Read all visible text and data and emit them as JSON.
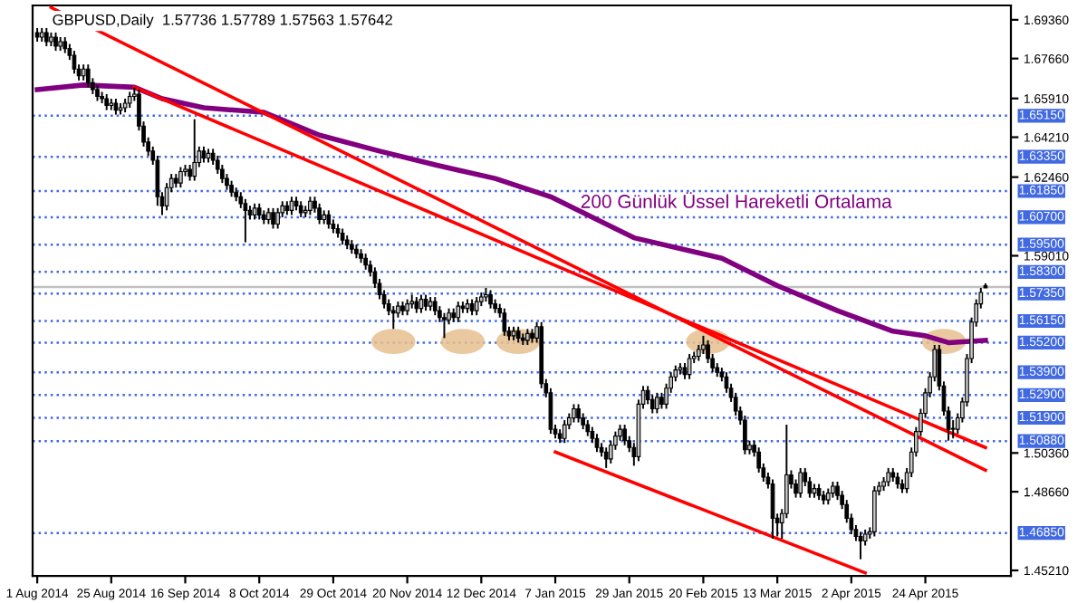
{
  "chart_data": {
    "type": "candlestick",
    "title": "GBPUSD,Daily  1.57736 1.57789 1.57563 1.57642",
    "categories": [
      "1 Aug 2014",
      null,
      null,
      null,
      null,
      null,
      null,
      null,
      null,
      null,
      null,
      null,
      null,
      null,
      null,
      null,
      "25 Aug 2014",
      null,
      null,
      null,
      null,
      null,
      null,
      null,
      null,
      null,
      null,
      null,
      null,
      null,
      null,
      null,
      "16 Sep 2014",
      null,
      null,
      null,
      null,
      null,
      null,
      null,
      null,
      null,
      null,
      null,
      null,
      null,
      null,
      null,
      "8 Oct 2014",
      null,
      null,
      null,
      null,
      null,
      null,
      null,
      null,
      null,
      null,
      null,
      null,
      null,
      null,
      null,
      "29 Oct 2014",
      null,
      null,
      null,
      null,
      null,
      null,
      null,
      null,
      null,
      null,
      null,
      null,
      null,
      null,
      null,
      "20 Nov 2014",
      null,
      null,
      null,
      null,
      null,
      null,
      null,
      null,
      null,
      null,
      null,
      null,
      null,
      null,
      null,
      "12 Dec 2014",
      null,
      null,
      null,
      null,
      null,
      null,
      null,
      null,
      null,
      null,
      null,
      null,
      null,
      null,
      null,
      "7 Jan 2015",
      null,
      null,
      null,
      null,
      null,
      null,
      null,
      null,
      null,
      null,
      null,
      null,
      null,
      null,
      null,
      "29 Jan 2015",
      null,
      null,
      null,
      null,
      null,
      null,
      null,
      null,
      null,
      null,
      null,
      null,
      null,
      null,
      null,
      "20 Feb 2015",
      null,
      null,
      null,
      null,
      null,
      null,
      null,
      null,
      null,
      null,
      null,
      null,
      null,
      null,
      null,
      "13 Mar 2015",
      null,
      null,
      null,
      null,
      null,
      null,
      null,
      null,
      null,
      null,
      null,
      null,
      null,
      null,
      null,
      "2 Apr 2015",
      null,
      null,
      null,
      null,
      null,
      null,
      null,
      null,
      null,
      null,
      null,
      null,
      null,
      null,
      null,
      "24 Apr 2015",
      null,
      null,
      null,
      null,
      null,
      null,
      null,
      null,
      null,
      null,
      null,
      null,
      null
    ],
    "ohlc": [
      [
        1.688,
        1.69,
        1.684,
        1.686
      ],
      [
        1.686,
        1.69,
        1.684,
        1.688
      ],
      [
        1.688,
        1.69,
        1.682,
        1.684
      ],
      [
        1.684,
        1.688,
        1.682,
        1.686
      ],
      [
        1.686,
        1.688,
        1.68,
        1.682
      ],
      [
        1.682,
        1.686,
        1.68,
        1.684
      ],
      [
        1.684,
        1.686,
        1.679,
        1.681
      ],
      [
        1.681,
        1.683,
        1.676,
        1.678
      ],
      [
        1.678,
        1.68,
        1.67,
        1.672
      ],
      [
        1.672,
        1.674,
        1.667,
        1.669
      ],
      [
        1.669,
        1.674,
        1.667,
        1.672
      ],
      [
        1.672,
        1.674,
        1.664,
        1.666
      ],
      [
        1.666,
        1.668,
        1.661,
        1.663
      ],
      [
        1.663,
        1.665,
        1.658,
        1.66
      ],
      [
        1.66,
        1.662,
        1.657,
        1.659
      ],
      [
        1.659,
        1.661,
        1.654,
        1.656
      ],
      [
        1.656,
        1.659,
        1.654,
        1.657
      ],
      [
        1.657,
        1.659,
        1.652,
        1.654
      ],
      [
        1.654,
        1.657,
        1.652,
        1.655
      ],
      [
        1.655,
        1.659,
        1.653,
        1.657
      ],
      [
        1.657,
        1.662,
        1.655,
        1.66
      ],
      [
        1.66,
        1.664,
        1.658,
        1.661
      ],
      [
        1.661,
        1.663,
        1.645,
        1.647
      ],
      [
        1.647,
        1.649,
        1.638,
        1.64
      ],
      [
        1.64,
        1.642,
        1.634,
        1.636
      ],
      [
        1.636,
        1.638,
        1.63,
        1.632
      ],
      [
        1.632,
        1.634,
        1.612,
        1.616
      ],
      [
        1.616,
        1.618,
        1.608,
        1.612
      ],
      [
        1.612,
        1.622,
        1.61,
        1.62
      ],
      [
        1.62,
        1.626,
        1.618,
        1.624
      ],
      [
        1.624,
        1.626,
        1.62,
        1.622
      ],
      [
        1.622,
        1.629,
        1.62,
        1.627
      ],
      [
        1.627,
        1.63,
        1.625,
        1.628
      ],
      [
        1.628,
        1.63,
        1.623,
        1.625
      ],
      [
        1.625,
        1.65,
        1.623,
        1.631
      ],
      [
        1.631,
        1.638,
        1.629,
        1.636
      ],
      [
        1.636,
        1.638,
        1.631,
        1.633
      ],
      [
        1.633,
        1.637,
        1.631,
        1.635
      ],
      [
        1.635,
        1.637,
        1.63,
        1.632
      ],
      [
        1.632,
        1.634,
        1.626,
        1.628
      ],
      [
        1.628,
        1.63,
        1.622,
        1.624
      ],
      [
        1.624,
        1.626,
        1.619,
        1.621
      ],
      [
        1.621,
        1.623,
        1.616,
        1.618
      ],
      [
        1.618,
        1.62,
        1.614,
        1.616
      ],
      [
        1.616,
        1.618,
        1.611,
        1.613
      ],
      [
        1.613,
        1.615,
        1.596,
        1.61
      ],
      [
        1.61,
        1.612,
        1.606,
        1.608
      ],
      [
        1.608,
        1.613,
        1.606,
        1.611
      ],
      [
        1.611,
        1.613,
        1.606,
        1.608
      ],
      [
        1.608,
        1.61,
        1.604,
        1.606
      ],
      [
        1.606,
        1.611,
        1.604,
        1.609
      ],
      [
        1.609,
        1.611,
        1.602,
        1.604
      ],
      [
        1.604,
        1.611,
        1.602,
        1.609
      ],
      [
        1.609,
        1.614,
        1.607,
        1.612
      ],
      [
        1.612,
        1.614,
        1.608,
        1.61
      ],
      [
        1.61,
        1.616,
        1.608,
        1.614
      ],
      [
        1.614,
        1.616,
        1.61,
        1.612
      ],
      [
        1.612,
        1.614,
        1.607,
        1.609
      ],
      [
        1.609,
        1.612,
        1.607,
        1.61
      ],
      [
        1.61,
        1.616,
        1.608,
        1.614
      ],
      [
        1.614,
        1.616,
        1.609,
        1.611
      ],
      [
        1.611,
        1.613,
        1.604,
        1.606
      ],
      [
        1.606,
        1.61,
        1.604,
        1.608
      ],
      [
        1.608,
        1.61,
        1.602,
        1.604
      ],
      [
        1.604,
        1.606,
        1.6,
        1.602
      ],
      [
        1.602,
        1.604,
        1.598,
        1.6
      ],
      [
        1.6,
        1.602,
        1.595,
        1.597
      ],
      [
        1.597,
        1.599,
        1.593,
        1.595
      ],
      [
        1.595,
        1.597,
        1.591,
        1.593
      ],
      [
        1.593,
        1.595,
        1.589,
        1.591
      ],
      [
        1.591,
        1.593,
        1.587,
        1.589
      ],
      [
        1.589,
        1.591,
        1.584,
        1.586
      ],
      [
        1.586,
        1.588,
        1.581,
        1.583
      ],
      [
        1.583,
        1.585,
        1.576,
        1.578
      ],
      [
        1.578,
        1.58,
        1.571,
        1.573
      ],
      [
        1.573,
        1.575,
        1.567,
        1.569
      ],
      [
        1.569,
        1.571,
        1.564,
        1.566
      ],
      [
        1.566,
        1.568,
        1.558,
        1.565
      ],
      [
        1.565,
        1.57,
        1.563,
        1.568
      ],
      [
        1.568,
        1.57,
        1.564,
        1.566
      ],
      [
        1.566,
        1.571,
        1.564,
        1.569
      ],
      [
        1.569,
        1.573,
        1.567,
        1.57
      ],
      [
        1.57,
        1.572,
        1.565,
        1.567
      ],
      [
        1.567,
        1.573,
        1.565,
        1.571
      ],
      [
        1.571,
        1.573,
        1.566,
        1.568
      ],
      [
        1.568,
        1.572,
        1.566,
        1.57
      ],
      [
        1.57,
        1.572,
        1.564,
        1.566
      ],
      [
        1.566,
        1.568,
        1.561,
        1.563
      ],
      [
        1.563,
        1.565,
        1.554,
        1.562
      ],
      [
        1.562,
        1.567,
        1.56,
        1.565
      ],
      [
        1.565,
        1.567,
        1.561,
        1.563
      ],
      [
        1.563,
        1.57,
        1.561,
        1.568
      ],
      [
        1.568,
        1.57,
        1.565,
        1.567
      ],
      [
        1.567,
        1.571,
        1.565,
        1.569
      ],
      [
        1.569,
        1.571,
        1.564,
        1.566
      ],
      [
        1.566,
        1.572,
        1.564,
        1.57
      ],
      [
        1.57,
        1.574,
        1.568,
        1.572
      ],
      [
        1.572,
        1.576,
        1.57,
        1.573
      ],
      [
        1.573,
        1.575,
        1.567,
        1.569
      ],
      [
        1.569,
        1.571,
        1.565,
        1.567
      ],
      [
        1.567,
        1.569,
        1.563,
        1.565
      ],
      [
        1.565,
        1.567,
        1.555,
        1.557
      ],
      [
        1.557,
        1.559,
        1.553,
        1.555
      ],
      [
        1.555,
        1.559,
        1.553,
        1.557
      ],
      [
        1.557,
        1.559,
        1.552,
        1.554
      ],
      [
        1.554,
        1.556,
        1.551,
        1.553
      ],
      [
        1.553,
        1.558,
        1.551,
        1.556
      ],
      [
        1.556,
        1.558,
        1.552,
        1.554
      ],
      [
        1.554,
        1.561,
        1.552,
        1.559
      ],
      [
        1.559,
        1.561,
        1.532,
        1.534
      ],
      [
        1.534,
        1.536,
        1.528,
        1.53
      ],
      [
        1.53,
        1.532,
        1.512,
        1.514
      ],
      [
        1.514,
        1.516,
        1.51,
        1.512
      ],
      [
        1.512,
        1.514,
        1.508,
        1.51
      ],
      [
        1.51,
        1.518,
        1.508,
        1.516
      ],
      [
        1.516,
        1.521,
        1.514,
        1.519
      ],
      [
        1.519,
        1.525,
        1.517,
        1.523
      ],
      [
        1.523,
        1.525,
        1.517,
        1.519
      ],
      [
        1.519,
        1.521,
        1.514,
        1.516
      ],
      [
        1.516,
        1.518,
        1.511,
        1.513
      ],
      [
        1.513,
        1.515,
        1.508,
        1.51
      ],
      [
        1.51,
        1.512,
        1.504,
        1.506
      ],
      [
        1.506,
        1.508,
        1.502,
        1.504
      ],
      [
        1.504,
        1.506,
        1.497,
        1.501
      ],
      [
        1.501,
        1.509,
        1.499,
        1.507
      ],
      [
        1.507,
        1.513,
        1.505,
        1.511
      ],
      [
        1.511,
        1.516,
        1.509,
        1.514
      ],
      [
        1.514,
        1.516,
        1.507,
        1.509
      ],
      [
        1.509,
        1.511,
        1.504,
        1.506
      ],
      [
        1.506,
        1.508,
        1.498,
        1.502
      ],
      [
        1.502,
        1.527,
        1.5,
        1.525
      ],
      [
        1.525,
        1.533,
        1.523,
        1.531
      ],
      [
        1.531,
        1.533,
        1.525,
        1.527
      ],
      [
        1.527,
        1.529,
        1.521,
        1.523
      ],
      [
        1.523,
        1.53,
        1.521,
        1.528
      ],
      [
        1.528,
        1.53,
        1.523,
        1.525
      ],
      [
        1.525,
        1.534,
        1.523,
        1.532
      ],
      [
        1.532,
        1.539,
        1.53,
        1.537
      ],
      [
        1.537,
        1.542,
        1.535,
        1.54
      ],
      [
        1.54,
        1.543,
        1.538,
        1.541
      ],
      [
        1.541,
        1.543,
        1.536,
        1.538
      ],
      [
        1.538,
        1.547,
        1.536,
        1.545
      ],
      [
        1.545,
        1.548,
        1.543,
        1.546
      ],
      [
        1.546,
        1.551,
        1.544,
        1.549
      ],
      [
        1.549,
        1.555,
        1.547,
        1.551
      ],
      [
        1.551,
        1.553,
        1.543,
        1.545
      ],
      [
        1.545,
        1.547,
        1.539,
        1.541
      ],
      [
        1.541,
        1.543,
        1.537,
        1.539
      ],
      [
        1.539,
        1.541,
        1.535,
        1.537
      ],
      [
        1.537,
        1.539,
        1.53,
        1.532
      ],
      [
        1.532,
        1.534,
        1.526,
        1.528
      ],
      [
        1.528,
        1.53,
        1.52,
        1.522
      ],
      [
        1.522,
        1.524,
        1.516,
        1.518
      ],
      [
        1.518,
        1.52,
        1.503,
        1.505
      ],
      [
        1.505,
        1.509,
        1.503,
        1.507
      ],
      [
        1.507,
        1.509,
        1.502,
        1.504
      ],
      [
        1.504,
        1.506,
        1.495,
        1.497
      ],
      [
        1.497,
        1.499,
        1.491,
        1.493
      ],
      [
        1.493,
        1.495,
        1.488,
        1.49
      ],
      [
        1.49,
        1.492,
        1.466,
        1.475
      ],
      [
        1.475,
        1.477,
        1.467,
        1.473
      ],
      [
        1.473,
        1.479,
        1.466,
        1.477
      ],
      [
        1.477,
        1.516,
        1.475,
        1.494
      ],
      [
        1.494,
        1.496,
        1.488,
        1.49
      ],
      [
        1.49,
        1.492,
        1.484,
        1.486
      ],
      [
        1.486,
        1.497,
        1.484,
        1.495
      ],
      [
        1.495,
        1.497,
        1.489,
        1.491
      ],
      [
        1.491,
        1.493,
        1.484,
        1.486
      ],
      [
        1.486,
        1.49,
        1.484,
        1.488
      ],
      [
        1.488,
        1.49,
        1.483,
        1.485
      ],
      [
        1.485,
        1.487,
        1.481,
        1.483
      ],
      [
        1.483,
        1.488,
        1.481,
        1.486
      ],
      [
        1.486,
        1.491,
        1.484,
        1.489
      ],
      [
        1.489,
        1.491,
        1.483,
        1.485
      ],
      [
        1.485,
        1.487,
        1.479,
        1.481
      ],
      [
        1.481,
        1.483,
        1.473,
        1.475
      ],
      [
        1.475,
        1.477,
        1.468,
        1.47
      ],
      [
        1.47,
        1.472,
        1.465,
        1.467
      ],
      [
        1.467,
        1.469,
        1.457,
        1.465
      ],
      [
        1.465,
        1.47,
        1.463,
        1.468
      ],
      [
        1.468,
        1.471,
        1.466,
        1.469
      ],
      [
        1.469,
        1.489,
        1.467,
        1.487
      ],
      [
        1.487,
        1.491,
        1.485,
        1.489
      ],
      [
        1.489,
        1.493,
        1.487,
        1.491
      ],
      [
        1.491,
        1.497,
        1.489,
        1.495
      ],
      [
        1.495,
        1.497,
        1.491,
        1.493
      ],
      [
        1.493,
        1.495,
        1.488,
        1.49
      ],
      [
        1.49,
        1.492,
        1.486,
        1.488
      ],
      [
        1.488,
        1.497,
        1.486,
        1.495
      ],
      [
        1.495,
        1.506,
        1.493,
        1.504
      ],
      [
        1.504,
        1.515,
        1.502,
        1.513
      ],
      [
        1.513,
        1.523,
        1.511,
        1.521
      ],
      [
        1.521,
        1.532,
        1.519,
        1.53
      ],
      [
        1.53,
        1.539,
        1.528,
        1.537
      ],
      [
        1.537,
        1.551,
        1.535,
        1.549
      ],
      [
        1.549,
        1.551,
        1.531,
        1.533
      ],
      [
        1.533,
        1.535,
        1.52,
        1.522
      ],
      [
        1.522,
        1.524,
        1.509,
        1.514
      ],
      [
        1.514,
        1.518,
        1.51,
        1.514
      ],
      [
        1.514,
        1.521,
        1.512,
        1.519
      ],
      [
        1.519,
        1.528,
        1.517,
        1.526
      ],
      [
        1.526,
        1.547,
        1.524,
        1.545
      ],
      [
        1.545,
        1.563,
        1.543,
        1.561
      ],
      [
        1.561,
        1.571,
        1.559,
        1.569
      ],
      [
        1.569,
        1.576,
        1.567,
        1.574
      ],
      [
        1.577,
        1.578,
        1.576,
        1.576
      ]
    ],
    "series": [
      {
        "type": "line",
        "name": "200 Günlük Üssel Hareketli Ortalama",
        "color": "#800080",
        "values": [
          1.663,
          null,
          null,
          null,
          null,
          null,
          null,
          null,
          null,
          null,
          1.665,
          null,
          null,
          null,
          null,
          null,
          null,
          null,
          null,
          null,
          null,
          1.664,
          null,
          null,
          null,
          null,
          null,
          1.659,
          null,
          null,
          null,
          null,
          null,
          null,
          null,
          null,
          1.655,
          null,
          null,
          null,
          null,
          null,
          null,
          null,
          null,
          null,
          null,
          null,
          null,
          1.653,
          null,
          null,
          null,
          null,
          null,
          null,
          null,
          null,
          null,
          null,
          null,
          1.643,
          null,
          null,
          null,
          null,
          null,
          null,
          null,
          null,
          null,
          null,
          null,
          null,
          1.636,
          null,
          null,
          null,
          null,
          null,
          null,
          null,
          null,
          null,
          null,
          null,
          1.63,
          null,
          null,
          null,
          null,
          null,
          null,
          null,
          null,
          null,
          null,
          null,
          null,
          1.624,
          null,
          null,
          null,
          null,
          null,
          null,
          null,
          null,
          null,
          null,
          null,
          1.616,
          null,
          null,
          null,
          null,
          null,
          null,
          null,
          null,
          null,
          null,
          null,
          null,
          null,
          null,
          null,
          null,
          null,
          1.598,
          null,
          null,
          null,
          null,
          null,
          null,
          null,
          null,
          null,
          null,
          null,
          null,
          null,
          null,
          null,
          null,
          null,
          null,
          1.589,
          null,
          null,
          null,
          null,
          null,
          null,
          null,
          null,
          null,
          null,
          null,
          1.577,
          null,
          null,
          null,
          null,
          null,
          null,
          null,
          null,
          null,
          null,
          null,
          null,
          1.566,
          null,
          null,
          null,
          null,
          null,
          null,
          null,
          null,
          null,
          null,
          null,
          1.557,
          null,
          null,
          null,
          null,
          null,
          null,
          1.555,
          null,
          null,
          null,
          null,
          1.552,
          null,
          null,
          null,
          null,
          null,
          null,
          null,
          1.553
        ]
      },
      {
        "type": "line",
        "color": "#ff0000",
        "values": [
          null,
          null,
          null,
          1.699,
          null,
          null,
          null,
          null,
          null,
          null,
          null,
          null,
          null,
          null,
          null,
          null,
          null,
          null,
          null,
          null,
          null,
          null,
          null,
          null,
          null,
          null,
          null,
          null,
          null,
          null,
          null,
          null,
          null,
          null,
          null,
          null,
          null,
          null,
          null,
          null,
          null,
          null,
          null,
          null,
          null,
          null,
          null,
          null,
          null,
          null,
          null,
          null,
          null,
          null,
          null,
          null,
          null,
          null,
          null,
          null,
          null,
          null,
          null,
          null,
          null,
          null,
          null,
          null,
          null,
          null,
          null,
          null,
          null,
          null,
          null,
          null,
          null,
          null,
          null,
          null,
          null,
          null,
          null,
          null,
          null,
          null,
          null,
          null,
          null,
          null,
          null,
          null,
          null,
          null,
          null,
          null,
          null,
          null,
          null,
          null,
          null,
          null,
          null,
          null,
          null,
          null,
          null,
          null,
          null,
          null,
          null,
          null,
          null,
          null,
          null,
          null,
          null,
          null,
          null,
          null,
          null,
          null,
          null,
          null,
          null,
          null,
          null,
          null,
          null,
          null,
          null,
          null,
          null,
          null,
          null,
          null,
          null,
          null,
          null,
          null,
          null,
          null,
          null,
          null,
          null,
          null,
          null,
          null,
          null,
          null,
          null,
          null,
          null,
          null,
          null,
          null,
          null,
          null,
          null,
          null,
          null,
          null,
          null,
          null,
          null,
          null,
          null,
          null,
          null,
          null,
          null,
          null,
          null,
          null,
          null,
          null,
          null,
          null,
          null,
          null,
          null,
          null,
          null,
          null,
          null,
          null,
          null,
          null,
          null,
          null,
          null,
          null,
          null,
          null,
          null,
          null,
          null,
          null,
          null,
          null,
          null,
          null,
          null,
          null,
          null,
          1.496
        ]
      },
      {
        "type": "line",
        "color": "#ff0000",
        "values": [
          null,
          null,
          null,
          null,
          null,
          null,
          null,
          null,
          null,
          null,
          null,
          null,
          null,
          null,
          null,
          null,
          null,
          null,
          null,
          null,
          null,
          1.664,
          null,
          null,
          null,
          null,
          null,
          null,
          null,
          null,
          null,
          null,
          null,
          null,
          null,
          null,
          null,
          null,
          null,
          null,
          null,
          null,
          null,
          null,
          null,
          null,
          null,
          null,
          null,
          null,
          null,
          null,
          null,
          null,
          null,
          null,
          null,
          null,
          null,
          null,
          null,
          null,
          null,
          null,
          null,
          null,
          null,
          null,
          null,
          null,
          null,
          null,
          null,
          null,
          null,
          null,
          null,
          null,
          null,
          null,
          null,
          null,
          null,
          null,
          null,
          null,
          null,
          null,
          null,
          null,
          null,
          null,
          null,
          null,
          null,
          null,
          null,
          null,
          null,
          null,
          null,
          null,
          null,
          null,
          null,
          null,
          null,
          null,
          null,
          null,
          null,
          null,
          null,
          null,
          null,
          null,
          null,
          null,
          null,
          null,
          null,
          null,
          null,
          null,
          null,
          null,
          null,
          null,
          null,
          null,
          null,
          null,
          null,
          null,
          null,
          null,
          null,
          null,
          null,
          null,
          null,
          null,
          null,
          null,
          null,
          null,
          null,
          null,
          null,
          null,
          null,
          null,
          null,
          null,
          null,
          null,
          null,
          null,
          null,
          null,
          null,
          null,
          null,
          null,
          null,
          null,
          null,
          null,
          null,
          null,
          null,
          null,
          null,
          null,
          null,
          null,
          null,
          null,
          null,
          null,
          null,
          null,
          null,
          null,
          null,
          null,
          null,
          null,
          null,
          null,
          null,
          null,
          null,
          null,
          null,
          null,
          null,
          null,
          null,
          null,
          null,
          null,
          null,
          null,
          null,
          1.506
        ]
      },
      {
        "type": "line",
        "color": "#ff0000",
        "values": [
          null,
          null,
          null,
          null,
          null,
          null,
          null,
          null,
          null,
          null,
          null,
          null,
          null,
          null,
          null,
          null,
          null,
          null,
          null,
          null,
          null,
          null,
          null,
          null,
          null,
          null,
          null,
          null,
          null,
          null,
          null,
          null,
          null,
          null,
          null,
          null,
          null,
          null,
          null,
          null,
          null,
          null,
          null,
          null,
          null,
          null,
          null,
          null,
          null,
          null,
          null,
          null,
          null,
          null,
          null,
          null,
          null,
          null,
          null,
          null,
          null,
          null,
          null,
          null,
          null,
          null,
          null,
          null,
          null,
          null,
          null,
          null,
          null,
          null,
          null,
          null,
          null,
          null,
          null,
          null,
          null,
          null,
          null,
          null,
          null,
          null,
          null,
          null,
          null,
          null,
          null,
          null,
          null,
          null,
          null,
          null,
          null,
          null,
          null,
          null,
          null,
          null,
          null,
          null,
          null,
          null,
          null,
          null,
          null,
          null,
          null,
          null,
          1.504,
          null,
          null,
          null,
          null,
          null,
          null,
          null,
          null,
          null,
          null,
          null,
          null,
          null,
          null,
          null,
          null,
          null,
          null,
          null,
          null,
          null,
          null,
          null,
          null,
          null,
          null,
          null,
          null,
          null,
          null,
          null,
          null,
          null,
          null,
          null,
          null,
          null,
          null,
          null,
          null,
          null,
          null,
          null,
          null,
          null,
          null,
          null,
          null,
          null,
          null,
          null,
          null,
          null,
          null,
          null,
          null,
          null,
          null,
          null,
          null,
          null,
          null,
          null,
          null,
          null,
          null,
          1.451,
          null,
          null,
          null,
          null,
          null,
          null,
          null,
          null,
          null,
          null,
          null,
          null,
          null,
          null,
          null,
          null,
          null,
          null,
          null,
          null,
          null,
          null,
          null,
          null,
          null,
          null
        ]
      }
    ],
    "ref_lines": [
      {
        "axis": "y",
        "value": 1.6515,
        "label": "1.65150",
        "color": "#4169e1",
        "line_style": "dotted"
      },
      {
        "axis": "y",
        "value": 1.6335,
        "label": "1.63350",
        "color": "#4169e1",
        "line_style": "dotted"
      },
      {
        "axis": "y",
        "value": 1.6185,
        "label": "1.61850",
        "color": "#4169e1",
        "line_style": "dotted"
      },
      {
        "axis": "y",
        "value": 1.607,
        "label": "1.60700",
        "color": "#4169e1",
        "line_style": "dotted"
      },
      {
        "axis": "y",
        "value": 1.595,
        "label": "1.59500",
        "color": "#4169e1",
        "line_style": "dotted"
      },
      {
        "axis": "y",
        "value": 1.583,
        "label": "1.58300",
        "color": "#4169e1",
        "line_style": "dotted"
      },
      {
        "axis": "y",
        "value": 1.5735,
        "label": "1.57350",
        "color": "#4169e1",
        "line_style": "dotted"
      },
      {
        "axis": "y",
        "value": 1.5615,
        "label": "1.56150",
        "color": "#4169e1",
        "line_style": "dotted"
      },
      {
        "axis": "y",
        "value": 1.552,
        "label": "1.55200",
        "color": "#4169e1",
        "line_style": "dotted"
      },
      {
        "axis": "y",
        "value": 1.539,
        "label": "1.53900",
        "color": "#4169e1",
        "line_style": "dotted"
      },
      {
        "axis": "y",
        "value": 1.529,
        "label": "1.52900",
        "color": "#4169e1",
        "line_style": "dotted"
      },
      {
        "axis": "y",
        "value": 1.519,
        "label": "1.51900",
        "color": "#4169e1",
        "line_style": "dotted"
      },
      {
        "axis": "y",
        "value": 1.5088,
        "label": "1.50880",
        "color": "#4169e1",
        "line_style": "dotted"
      },
      {
        "axis": "y",
        "value": 1.4685,
        "label": "1.46850",
        "color": "#4169e1",
        "line_style": "dotted"
      },
      {
        "axis": "y",
        "value": 1.57642,
        "color": "#c0c0c0",
        "line_style": "solid"
      }
    ],
    "ylim": [
      1.4497,
      1.6999
    ],
    "yticks": [
      {
        "value": 1.6936,
        "label": "1.69360"
      },
      {
        "value": 1.6766,
        "label": "1.67660"
      },
      {
        "value": 1.6591,
        "label": "1.65910"
      },
      {
        "value": 1.6421,
        "label": "1.64210"
      },
      {
        "value": 1.6246,
        "label": "1.62460"
      },
      {
        "value": 1.5901,
        "label": "1.59010"
      },
      {
        "value": 1.5036,
        "label": "1.50360"
      },
      {
        "value": 1.4866,
        "label": "1.48660"
      },
      {
        "value": 1.4521,
        "label": "1.45210"
      }
    ]
  }
}
